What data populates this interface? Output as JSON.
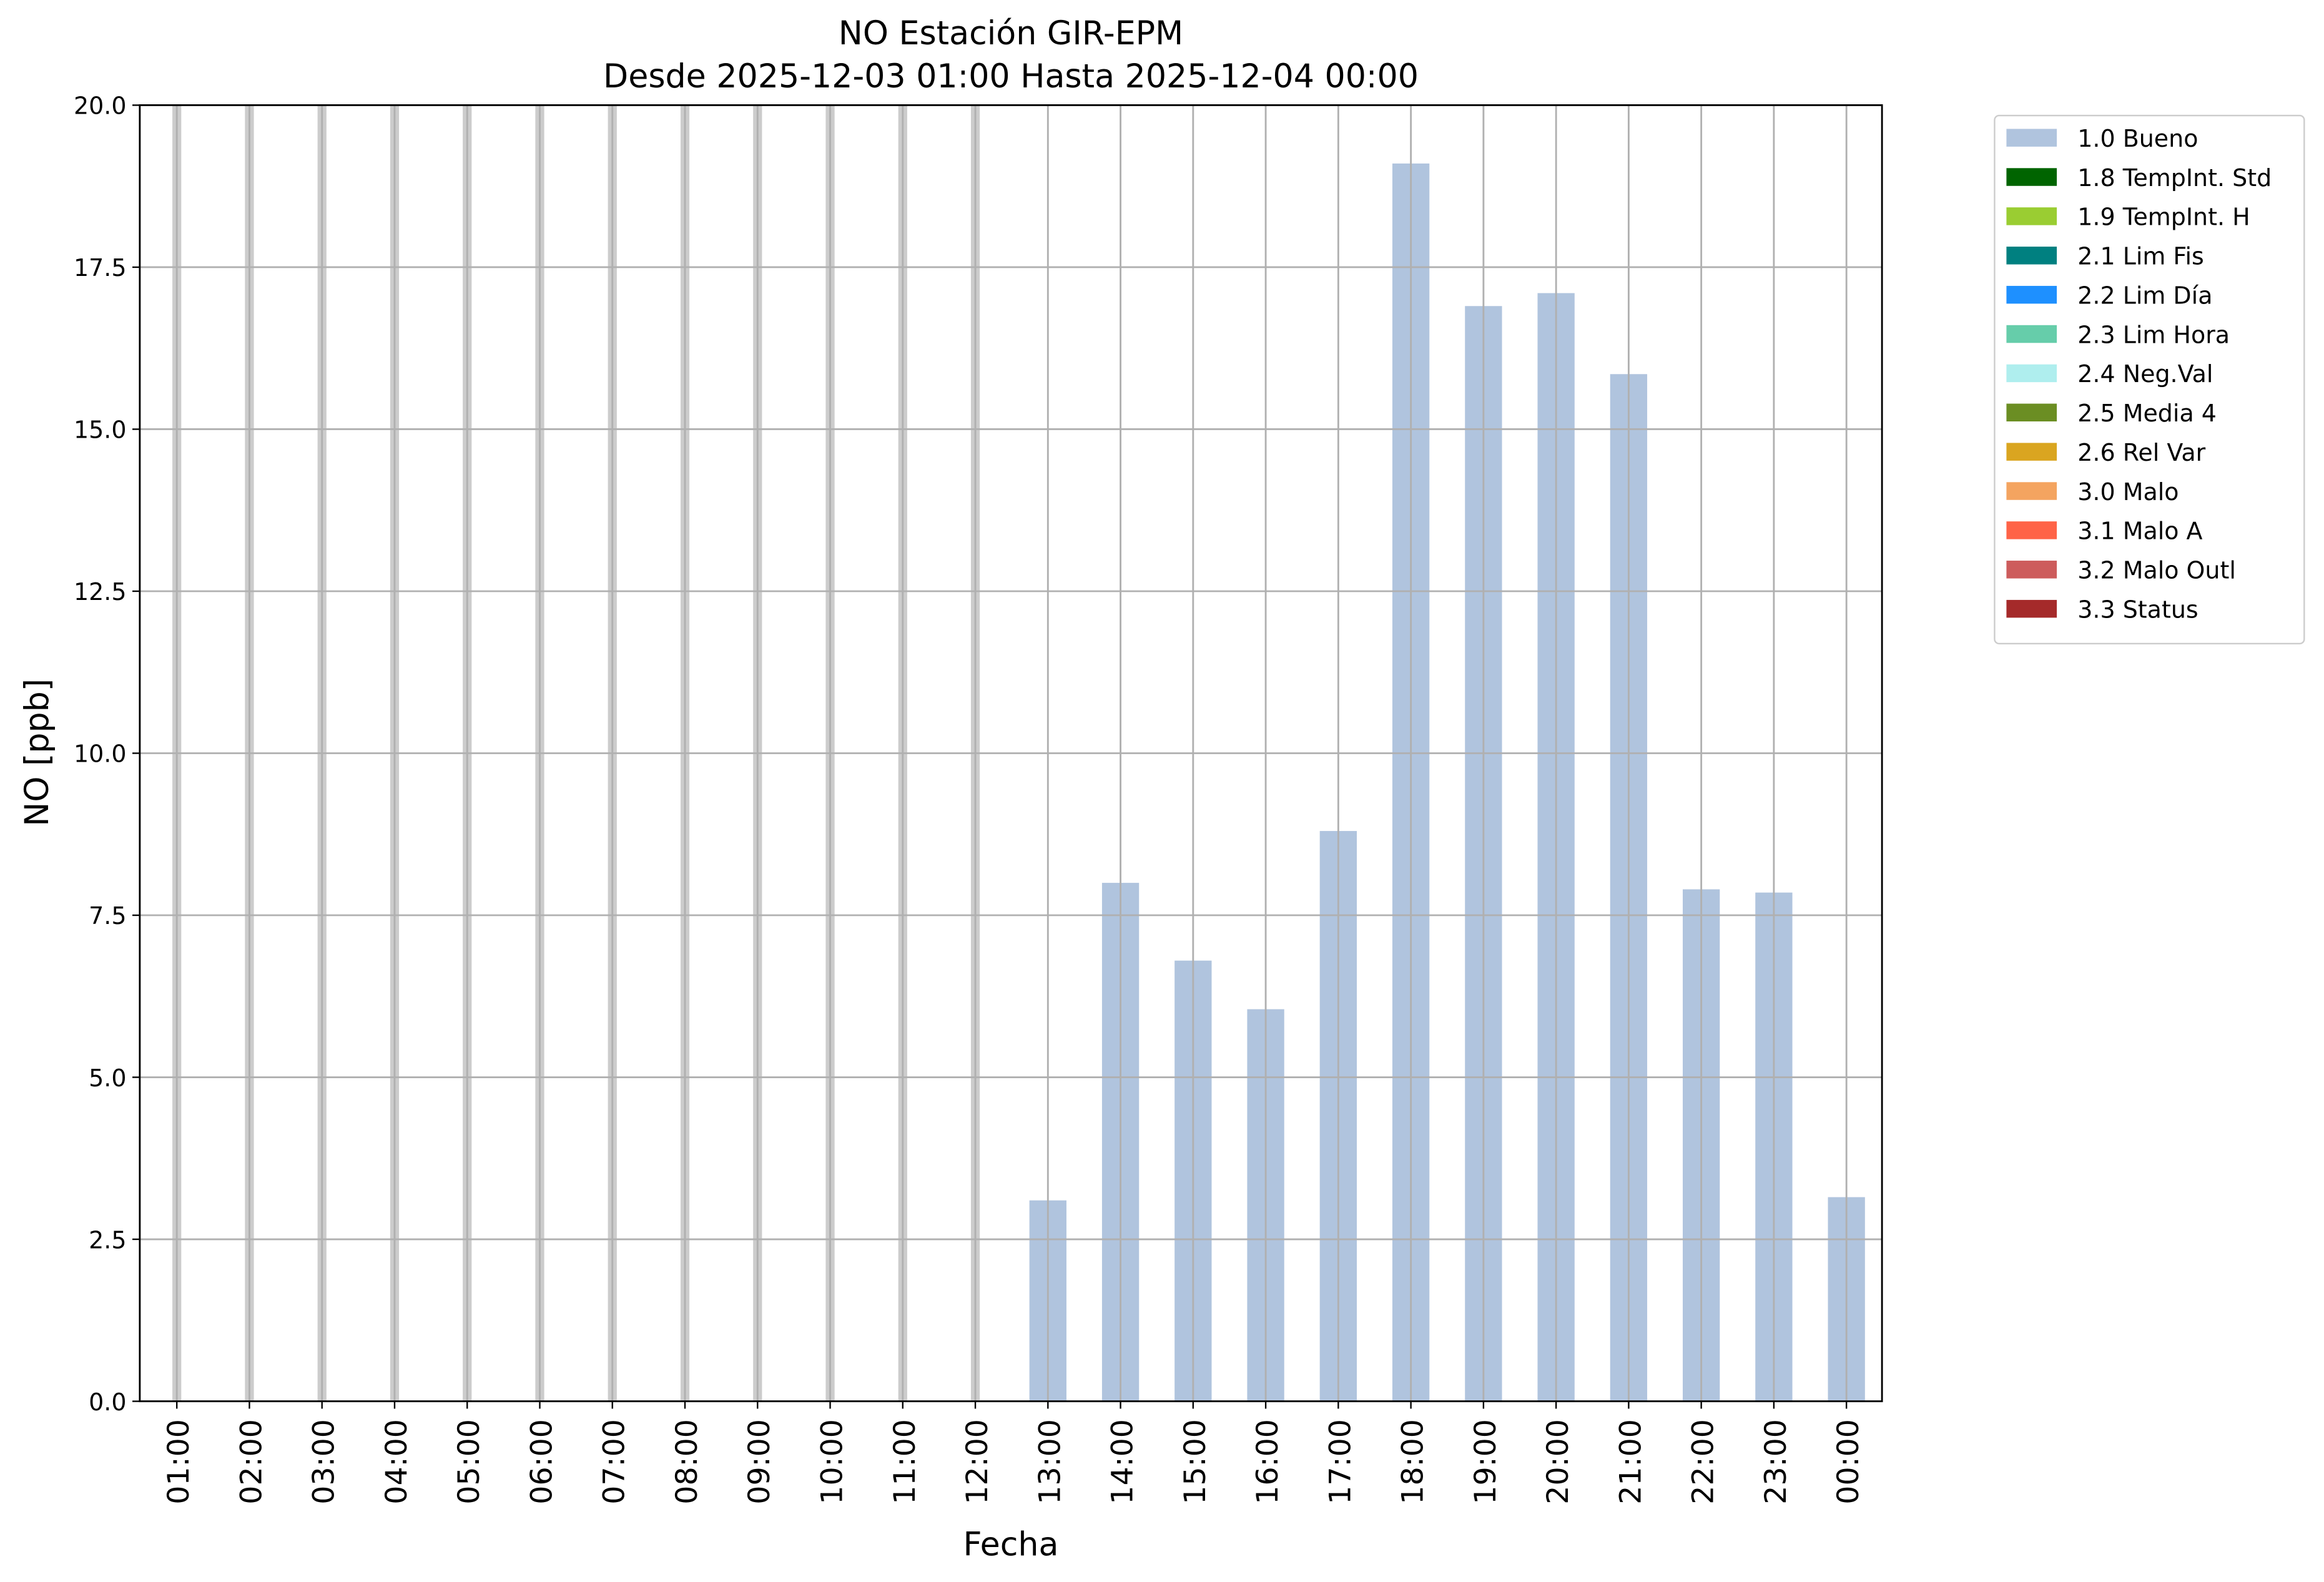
{
  "chart_data": {
    "type": "bar",
    "title": "NO Estación GIR-EPM",
    "subtitle": "Desde 2025-12-03 01:00 Hasta 2025-12-04 00:00",
    "x_label": "Fecha",
    "y_label": "NO [ppb]",
    "categories": [
      "01:00",
      "02:00",
      "03:00",
      "04:00",
      "05:00",
      "06:00",
      "07:00",
      "08:00",
      "09:00",
      "10:00",
      "11:00",
      "12:00",
      "13:00",
      "14:00",
      "15:00",
      "16:00",
      "17:00",
      "18:00",
      "19:00",
      "20:00",
      "21:00",
      "22:00",
      "23:00",
      "00:00"
    ],
    "series": [
      {
        "name": "1.0 Bueno",
        "color": "#b0c4de",
        "values": [
          null,
          null,
          null,
          null,
          null,
          null,
          null,
          null,
          null,
          null,
          null,
          null,
          3.1,
          8.0,
          6.8,
          6.05,
          8.8,
          19.1,
          16.9,
          17.1,
          15.85,
          7.9,
          7.85,
          3.15
        ]
      },
      {
        "name": "1.8 TempInt. Std",
        "color": "#006400",
        "values": [
          null,
          null,
          null,
          null,
          null,
          null,
          null,
          null,
          null,
          null,
          null,
          null,
          null,
          null,
          null,
          null,
          null,
          null,
          null,
          null,
          null,
          null,
          null,
          null
        ]
      },
      {
        "name": "1.9 TempInt. H",
        "color": "#9acd32",
        "values": [
          null,
          null,
          null,
          null,
          null,
          null,
          null,
          null,
          null,
          null,
          null,
          null,
          null,
          null,
          null,
          null,
          null,
          null,
          null,
          null,
          null,
          null,
          null,
          null
        ]
      },
      {
        "name": "2.1 Lim Fis",
        "color": "#008080",
        "values": [
          null,
          null,
          null,
          null,
          null,
          null,
          null,
          null,
          null,
          null,
          null,
          null,
          null,
          null,
          null,
          null,
          null,
          null,
          null,
          null,
          null,
          null,
          null,
          null
        ]
      },
      {
        "name": "2.2 Lim Día",
        "color": "#1e90ff",
        "values": [
          null,
          null,
          null,
          null,
          null,
          null,
          null,
          null,
          null,
          null,
          null,
          null,
          null,
          null,
          null,
          null,
          null,
          null,
          null,
          null,
          null,
          null,
          null,
          null
        ]
      },
      {
        "name": "2.3 Lim Hora",
        "color": "#66cdaa",
        "values": [
          null,
          null,
          null,
          null,
          null,
          null,
          null,
          null,
          null,
          null,
          null,
          null,
          null,
          null,
          null,
          null,
          null,
          null,
          null,
          null,
          null,
          null,
          null,
          null
        ]
      },
      {
        "name": "2.4 Neg.Val",
        "color": "#afeeee",
        "values": [
          null,
          null,
          null,
          null,
          null,
          null,
          null,
          null,
          null,
          null,
          null,
          null,
          null,
          null,
          null,
          null,
          null,
          null,
          null,
          null,
          null,
          null,
          null,
          null
        ]
      },
      {
        "name": "2.5 Media 4",
        "color": "#6b8e23",
        "values": [
          null,
          null,
          null,
          null,
          null,
          null,
          null,
          null,
          null,
          null,
          null,
          null,
          null,
          null,
          null,
          null,
          null,
          null,
          null,
          null,
          null,
          null,
          null,
          null
        ]
      },
      {
        "name": "2.6 Rel Var",
        "color": "#daa520",
        "values": [
          null,
          null,
          null,
          null,
          null,
          null,
          null,
          null,
          null,
          null,
          null,
          null,
          null,
          null,
          null,
          null,
          null,
          null,
          null,
          null,
          null,
          null,
          null,
          null
        ]
      },
      {
        "name": "3.0 Malo",
        "color": "#f4a460",
        "values": [
          null,
          null,
          null,
          null,
          null,
          null,
          null,
          null,
          null,
          null,
          null,
          null,
          null,
          null,
          null,
          null,
          null,
          null,
          null,
          null,
          null,
          null,
          null,
          null
        ]
      },
      {
        "name": "3.1 Malo A",
        "color": "#ff6347",
        "values": [
          null,
          null,
          null,
          null,
          null,
          null,
          null,
          null,
          null,
          null,
          null,
          null,
          null,
          null,
          null,
          null,
          null,
          null,
          null,
          null,
          null,
          null,
          null,
          null
        ]
      },
      {
        "name": "3.2 Malo Outl",
        "color": "#cd5c5c",
        "values": [
          null,
          null,
          null,
          null,
          null,
          null,
          null,
          null,
          null,
          null,
          null,
          null,
          null,
          null,
          null,
          null,
          null,
          null,
          null,
          null,
          null,
          null,
          null,
          null
        ]
      },
      {
        "name": "3.3 Status",
        "color": "#a52a2a",
        "values": [
          null,
          null,
          null,
          null,
          null,
          null,
          null,
          null,
          null,
          null,
          null,
          null,
          null,
          null,
          null,
          null,
          null,
          null,
          null,
          null,
          null,
          null,
          null,
          null
        ]
      }
    ],
    "ylim": [
      0,
      20
    ],
    "yticks": [
      {
        "value": 0,
        "label": "0.0"
      },
      2.5,
      {
        "value": 5,
        "label": "5.0"
      },
      7.5,
      {
        "value": 10,
        "label": "10.0"
      },
      12.5,
      {
        "value": 15,
        "label": "15.0"
      },
      17.5,
      {
        "value": 20,
        "label": "20.0"
      }
    ],
    "grid": true,
    "legend": "outside right"
  }
}
